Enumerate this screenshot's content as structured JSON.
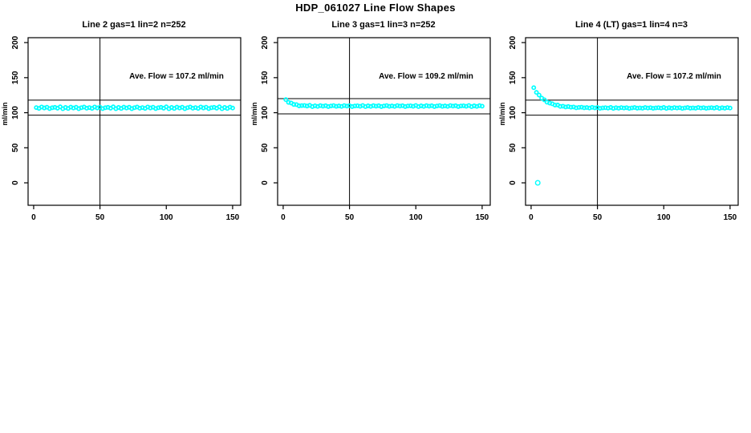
{
  "figure": {
    "title": "HDP_061027  Line Flow Shapes",
    "background": "#ffffff",
    "point_color": "#00ffff",
    "line_color": "#000000"
  },
  "chart_data": [
    {
      "type": "scatter",
      "title": "Line 2 gas=1 lin=2 n=252",
      "annotation": "Ave. Flow =  107.2  ml/min",
      "ave_flow": 107.2,
      "n": 252,
      "xlabel": "",
      "ylabel": "ml/min",
      "x_ticks": [
        0,
        50,
        100,
        150
      ],
      "y_ticks": [
        0,
        50,
        100,
        150,
        200
      ],
      "xlim": [
        -4.2,
        156.1
      ],
      "ylim": [
        -32,
        207
      ],
      "grid": false,
      "vline_x": 50,
      "hlines": [
        117.9,
        96.5
      ],
      "points": [
        [
          2,
          107.3
        ],
        [
          4,
          106.2
        ],
        [
          6,
          108.2
        ],
        [
          8,
          106.8
        ],
        [
          10,
          107.9
        ],
        [
          12,
          105.9
        ],
        [
          14,
          107.1
        ],
        [
          16,
          107.7
        ],
        [
          18,
          106.5
        ],
        [
          20,
          108.4
        ],
        [
          22,
          105.7
        ],
        [
          24,
          107.5
        ],
        [
          26,
          106.1
        ],
        [
          28,
          108.0
        ],
        [
          30,
          106.7
        ],
        [
          32,
          107.8
        ],
        [
          34,
          105.8
        ],
        [
          36,
          107.2
        ],
        [
          38,
          108.1
        ],
        [
          40,
          106.4
        ],
        [
          42,
          107.3
        ],
        [
          44,
          106.2
        ],
        [
          46,
          108.2
        ],
        [
          48,
          106.8
        ],
        [
          50,
          107.9
        ],
        [
          52,
          105.9
        ],
        [
          54,
          107.1
        ],
        [
          56,
          107.7
        ],
        [
          58,
          106.5
        ],
        [
          60,
          108.4
        ],
        [
          62,
          105.7
        ],
        [
          64,
          107.5
        ],
        [
          66,
          106.1
        ],
        [
          68,
          108.0
        ],
        [
          70,
          106.7
        ],
        [
          72,
          107.8
        ],
        [
          74,
          105.8
        ],
        [
          76,
          107.2
        ],
        [
          78,
          108.1
        ],
        [
          80,
          106.4
        ],
        [
          82,
          107.3
        ],
        [
          84,
          106.2
        ],
        [
          86,
          108.2
        ],
        [
          88,
          106.8
        ],
        [
          90,
          107.9
        ],
        [
          92,
          105.9
        ],
        [
          94,
          107.1
        ],
        [
          96,
          107.7
        ],
        [
          98,
          106.5
        ],
        [
          100,
          108.4
        ],
        [
          102,
          105.7
        ],
        [
          104,
          107.5
        ],
        [
          106,
          106.1
        ],
        [
          108,
          108.0
        ],
        [
          110,
          106.7
        ],
        [
          112,
          107.8
        ],
        [
          114,
          105.8
        ],
        [
          116,
          107.2
        ],
        [
          118,
          108.1
        ],
        [
          120,
          106.4
        ],
        [
          122,
          107.3
        ],
        [
          124,
          106.2
        ],
        [
          126,
          108.2
        ],
        [
          128,
          106.8
        ],
        [
          130,
          107.9
        ],
        [
          132,
          105.9
        ],
        [
          134,
          107.1
        ],
        [
          136,
          107.7
        ],
        [
          138,
          106.5
        ],
        [
          140,
          108.4
        ],
        [
          142,
          105.7
        ],
        [
          144,
          107.5
        ],
        [
          146,
          106.1
        ],
        [
          148,
          108.0
        ],
        [
          150,
          106.7
        ]
      ]
    },
    {
      "type": "scatter",
      "title": "Line 3 gas=1 lin=3 n=252",
      "annotation": "Ave. Flow =  109.2  ml/min",
      "ave_flow": 109.2,
      "n": 252,
      "xlabel": "",
      "ylabel": "ml/min",
      "x_ticks": [
        0,
        50,
        100,
        150
      ],
      "y_ticks": [
        0,
        50,
        100,
        150,
        200
      ],
      "xlim": [
        -4.2,
        156.1
      ],
      "ylim": [
        -32,
        207
      ],
      "grid": false,
      "vline_x": 50,
      "hlines": [
        120.1,
        98.3
      ],
      "points": [
        [
          2,
          118.7
        ],
        [
          4,
          114.8
        ],
        [
          6,
          113.9
        ],
        [
          8,
          111.8
        ],
        [
          10,
          111.6
        ],
        [
          12,
          109.8
        ],
        [
          14,
          110.2
        ],
        [
          16,
          110.3
        ],
        [
          18,
          109.5
        ],
        [
          20,
          110.5
        ],
        [
          22,
          108.8
        ],
        [
          24,
          109.9
        ],
        [
          26,
          109.0
        ],
        [
          28,
          110.1
        ],
        [
          30,
          109.3
        ],
        [
          32,
          110.0
        ],
        [
          34,
          108.8
        ],
        [
          36,
          109.6
        ],
        [
          38,
          110.2
        ],
        [
          40,
          109.1
        ],
        [
          42,
          109.7
        ],
        [
          44,
          109.0
        ],
        [
          46,
          110.2
        ],
        [
          48,
          109.4
        ],
        [
          50,
          110.0
        ],
        [
          52,
          108.8
        ],
        [
          54,
          109.6
        ],
        [
          56,
          109.9
        ],
        [
          58,
          109.2
        ],
        [
          60,
          110.3
        ],
        [
          62,
          108.7
        ],
        [
          64,
          109.8
        ],
        [
          66,
          109.0
        ],
        [
          68,
          110.1
        ],
        [
          70,
          109.3
        ],
        [
          72,
          110.0
        ],
        [
          74,
          108.8
        ],
        [
          76,
          109.6
        ],
        [
          78,
          110.2
        ],
        [
          80,
          109.1
        ],
        [
          82,
          109.7
        ],
        [
          84,
          109.0
        ],
        [
          86,
          110.2
        ],
        [
          88,
          109.4
        ],
        [
          90,
          110.0
        ],
        [
          92,
          108.8
        ],
        [
          94,
          109.6
        ],
        [
          96,
          109.9
        ],
        [
          98,
          109.2
        ],
        [
          100,
          110.3
        ],
        [
          102,
          108.7
        ],
        [
          104,
          109.8
        ],
        [
          106,
          109.0
        ],
        [
          108,
          110.1
        ],
        [
          110,
          109.3
        ],
        [
          112,
          110.0
        ],
        [
          114,
          108.8
        ],
        [
          116,
          109.6
        ],
        [
          118,
          110.2
        ],
        [
          120,
          109.1
        ],
        [
          122,
          109.7
        ],
        [
          124,
          109.0
        ],
        [
          126,
          110.2
        ],
        [
          128,
          109.4
        ],
        [
          130,
          110.0
        ],
        [
          132,
          108.8
        ],
        [
          134,
          109.6
        ],
        [
          136,
          109.9
        ],
        [
          138,
          109.2
        ],
        [
          140,
          110.3
        ],
        [
          142,
          108.7
        ],
        [
          144,
          109.8
        ],
        [
          146,
          109.0
        ],
        [
          148,
          110.1
        ],
        [
          150,
          109.3
        ]
      ]
    },
    {
      "type": "scatter",
      "title": "Line 4 (LT) gas=1 lin=4 n=3",
      "annotation": "Ave. Flow =  107.2  ml/min",
      "ave_flow": 107.2,
      "n": 3,
      "xlabel": "",
      "ylabel": "ml/min",
      "x_ticks": [
        0,
        50,
        100,
        150
      ],
      "y_ticks": [
        0,
        50,
        100,
        150,
        200
      ],
      "xlim": [
        -4.2,
        156.1
      ],
      "ylim": [
        -32,
        207
      ],
      "grid": false,
      "vline_x": 50,
      "hlines": [
        117.9,
        96.5
      ],
      "outlier_point": [
        5,
        0
      ],
      "points": [
        [
          2,
          135.7
        ],
        [
          4,
          129.0
        ],
        [
          6,
          125.2
        ],
        [
          8,
          120.8
        ],
        [
          10,
          118.4
        ],
        [
          12,
          115.0
        ],
        [
          14,
          113.8
        ],
        [
          16,
          112.7
        ],
        [
          18,
          110.9
        ],
        [
          20,
          111.0
        ],
        [
          22,
          109.0
        ],
        [
          24,
          109.3
        ],
        [
          26,
          108.2
        ],
        [
          28,
          108.8
        ],
        [
          30,
          107.9
        ],
        [
          32,
          108.2
        ],
        [
          34,
          107.0
        ],
        [
          36,
          107.6
        ],
        [
          38,
          107.9
        ],
        [
          40,
          107.0
        ],
        [
          42,
          107.4
        ],
        [
          44,
          106.7
        ],
        [
          46,
          107.7
        ],
        [
          48,
          106.9
        ],
        [
          50,
          107.4
        ],
        [
          52,
          106.3
        ],
        [
          54,
          106.9
        ],
        [
          56,
          107.2
        ],
        [
          58,
          106.6
        ],
        [
          60,
          107.5
        ],
        [
          62,
          106.2
        ],
        [
          64,
          107.1
        ],
        [
          66,
          106.4
        ],
        [
          68,
          107.3
        ],
        [
          70,
          106.7
        ],
        [
          72,
          107.2
        ],
        [
          74,
          106.2
        ],
        [
          76,
          106.9
        ],
        [
          78,
          107.4
        ],
        [
          80,
          106.5
        ],
        [
          82,
          106.9
        ],
        [
          84,
          106.4
        ],
        [
          86,
          107.4
        ],
        [
          88,
          106.7
        ],
        [
          90,
          107.2
        ],
        [
          92,
          106.3
        ],
        [
          94,
          106.9
        ],
        [
          96,
          107.2
        ],
        [
          98,
          106.6
        ],
        [
          100,
          107.5
        ],
        [
          102,
          106.2
        ],
        [
          104,
          107.1
        ],
        [
          106,
          106.4
        ],
        [
          108,
          107.3
        ],
        [
          110,
          106.7
        ],
        [
          112,
          107.2
        ],
        [
          114,
          106.2
        ],
        [
          116,
          106.9
        ],
        [
          118,
          107.4
        ],
        [
          120,
          106.5
        ],
        [
          122,
          106.9
        ],
        [
          124,
          106.4
        ],
        [
          126,
          107.4
        ],
        [
          128,
          106.7
        ],
        [
          130,
          107.2
        ],
        [
          132,
          106.3
        ],
        [
          134,
          106.9
        ],
        [
          136,
          107.2
        ],
        [
          138,
          106.6
        ],
        [
          140,
          107.5
        ],
        [
          142,
          106.2
        ],
        [
          144,
          107.1
        ],
        [
          146,
          106.4
        ],
        [
          148,
          107.3
        ],
        [
          150,
          106.7
        ]
      ]
    }
  ]
}
